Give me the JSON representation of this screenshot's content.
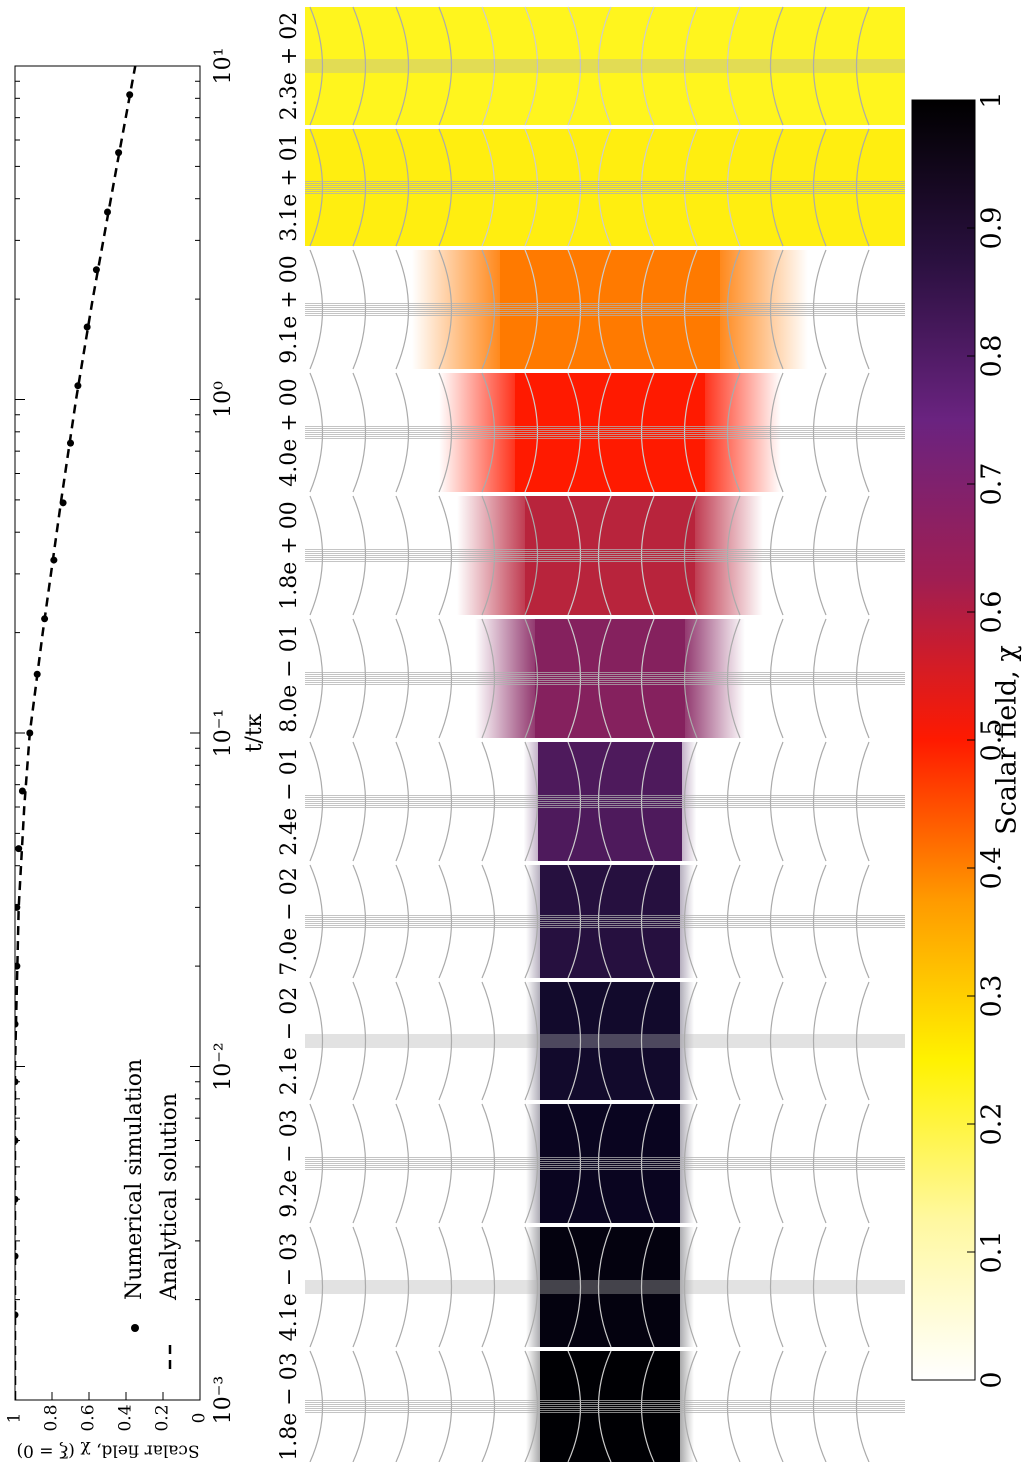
{
  "chart_data": [
    {
      "type": "scatter",
      "xlabel": "t/tκ",
      "ylabel": "Scalar field, χ (ξ = 0)",
      "xscale": "log",
      "xlim": [
        0.001,
        10
      ],
      "xticks": [
        {
          "value": 0.001,
          "label": "10⁻³"
        },
        {
          "value": 0.01,
          "label": "10⁻²"
        },
        {
          "value": 0.1,
          "label": "10⁻¹"
        },
        {
          "value": 1,
          "label": "10⁰"
        },
        {
          "value": 10,
          "label": "10¹"
        }
      ],
      "ylim": [
        0,
        1
      ],
      "yticks": [
        0,
        0.2,
        0.4,
        0.6,
        0.8,
        1
      ],
      "series": [
        {
          "name": "Numerical simulation",
          "color": "#000000",
          "marker": "dot",
          "x": [
            0.0018,
            0.0027,
            0.004,
            0.006,
            0.009,
            0.0134,
            0.02,
            0.03,
            0.045,
            0.067,
            0.1,
            0.15,
            0.22,
            0.33,
            0.49,
            0.74,
            1.1,
            1.65,
            2.45,
            3.65,
            5.5,
            8.2
          ],
          "values": [
            1,
            1,
            1,
            1,
            1,
            1,
            0.99,
            0.99,
            0.98,
            0.96,
            0.92,
            0.88,
            0.84,
            0.79,
            0.74,
            0.7,
            0.66,
            0.61,
            0.56,
            0.5,
            0.44,
            0.38
          ]
        },
        {
          "name": "Analytical solution",
          "color": "#000000",
          "marker": "dashed",
          "x": [
            0.001,
            0.01,
            0.03,
            0.06,
            0.1,
            0.2,
            0.5,
            1,
            2,
            5,
            10
          ],
          "values": [
            1,
            1,
            0.98,
            0.95,
            0.92,
            0.85,
            0.75,
            0.67,
            0.58,
            0.45,
            0.35
          ]
        }
      ]
    },
    {
      "type": "panels",
      "panels": [
        {
          "label": "1.8e − 03",
          "color": "#000004",
          "background": "#ffffff"
        },
        {
          "label": "4.1e − 03",
          "color": "#04020f",
          "background": "#ffffff"
        },
        {
          "label": "9.2e − 03",
          "color": "#0a0520",
          "background": "#ffffff"
        },
        {
          "label": "2.1e − 02",
          "color": "#120a2c",
          "background": "#ffffff"
        },
        {
          "label": "7.0e − 02",
          "color": "#26103f",
          "background": "#ffffff"
        },
        {
          "label": "2.4e − 01",
          "color": "#4e1a5c",
          "background": "#ffffff"
        },
        {
          "label": "8.0e − 01",
          "color": "#85215e",
          "background": "#ffffff"
        },
        {
          "label": "1.8e + 00",
          "color": "#b8243c",
          "background": "#ffffff"
        },
        {
          "label": "4.0e + 00",
          "color": "#ff1a00",
          "background": "#ffffff"
        },
        {
          "label": "9.1e + 00",
          "color": "#ff7a00",
          "background": "#ffffff"
        },
        {
          "label": "3.1e + 01",
          "color": "#ffee10",
          "background": "#ffee10"
        },
        {
          "label": "2.3e + 02",
          "color": "#fff51e",
          "background": "#fff51e"
        }
      ]
    },
    {
      "type": "colorbar",
      "label": "Scalar field, χ",
      "ylim": [
        0,
        1
      ],
      "yticks": [
        0,
        0.1,
        0.2,
        0.3,
        0.4,
        0.5,
        0.6,
        0.7,
        0.8,
        0.9,
        1
      ],
      "colormap": [
        "#ffffff",
        "#fff8a0",
        "#fff200",
        "#ff9a00",
        "#ff1a00",
        "#a01e52",
        "#6a2380",
        "#2a103f",
        "#000000"
      ]
    }
  ]
}
